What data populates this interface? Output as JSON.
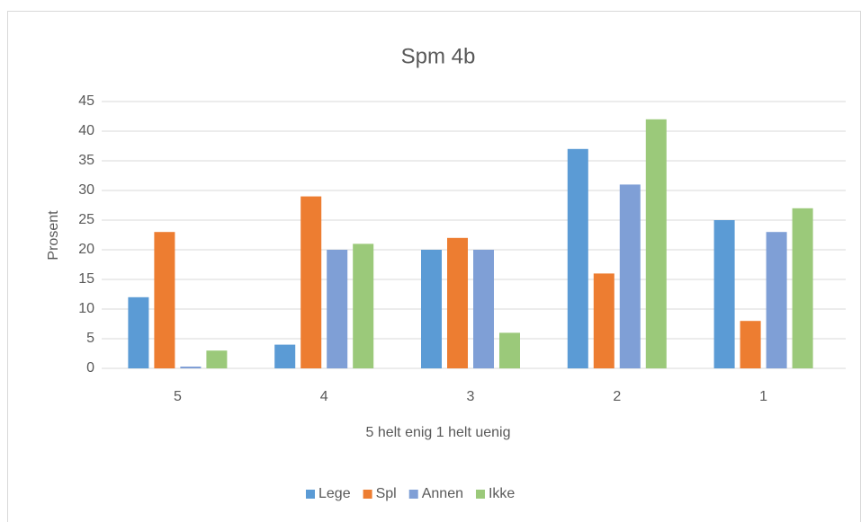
{
  "chart_data": {
    "type": "bar",
    "title": "Spm 4b",
    "x_label": "5 helt enig  1 helt uenig",
    "y_label": "Prosent",
    "categories": [
      "5",
      "4",
      "3",
      "2",
      "1"
    ],
    "series": [
      {
        "name": "Lege",
        "color": "#5b9bd5",
        "values": [
          12,
          4,
          20,
          37,
          25
        ]
      },
      {
        "name": "Spl",
        "color": "#ed7d31",
        "values": [
          23,
          29,
          22,
          16,
          8
        ]
      },
      {
        "name": "Annen",
        "color": "#7f9fd6",
        "values": [
          0.3,
          20,
          20,
          31,
          23
        ]
      },
      {
        "name": "Ikke",
        "color": "#9bc97a",
        "values": [
          3,
          21,
          6,
          42,
          27
        ]
      }
    ],
    "ylim": [
      0,
      45
    ],
    "yticks": [
      0,
      5,
      10,
      15,
      20,
      25,
      30,
      35,
      40,
      45
    ],
    "grid": true,
    "legend": "bottom"
  }
}
